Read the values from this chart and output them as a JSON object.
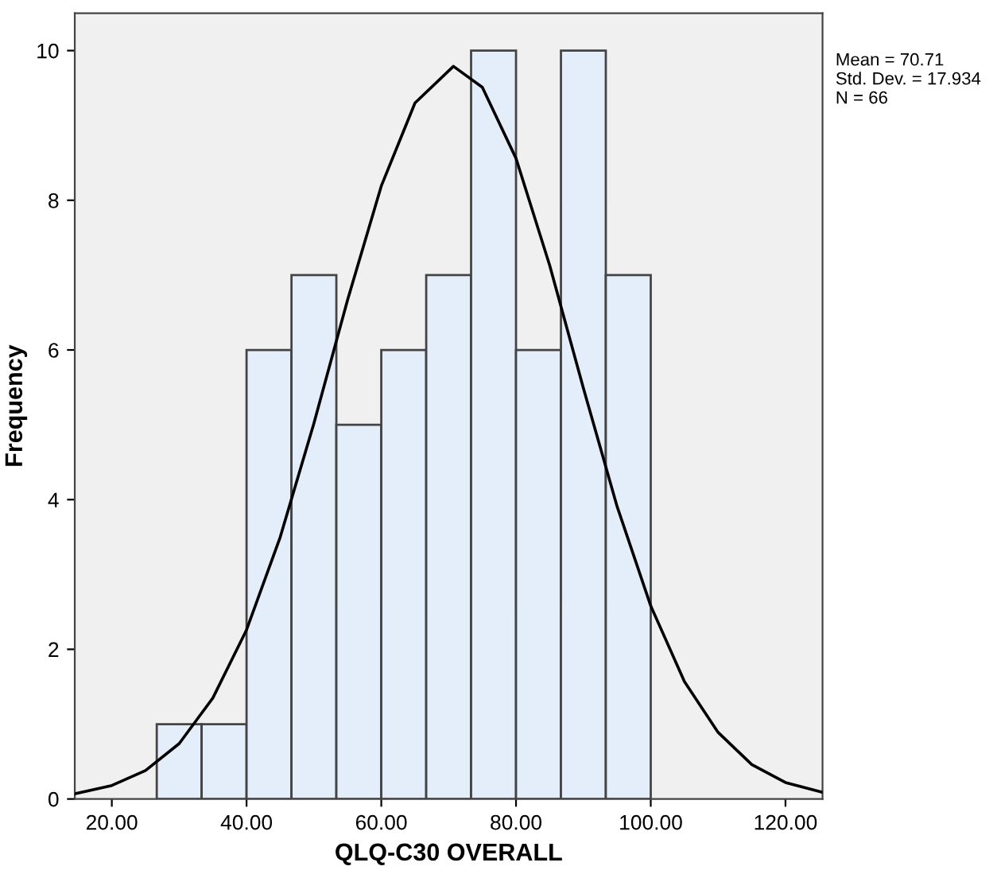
{
  "chart_data": {
    "type": "histogram",
    "xlabel": "QLQ-C30 OVERALL",
    "ylabel": "Frequency",
    "bins": [
      26.67,
      33.33,
      40,
      46.67,
      53.33,
      60,
      66.67,
      73.33,
      80,
      86.67,
      93.33,
      100
    ],
    "values": [
      1,
      1,
      6,
      7,
      5,
      6,
      7,
      10,
      6,
      10,
      7
    ],
    "color": "#e3eefa",
    "series": [
      {
        "type": "line",
        "color": "#000000",
        "x": [
          14.5,
          20,
          25,
          30,
          35,
          40,
          45,
          50,
          55,
          60,
          65,
          70.71,
          75,
          80,
          85,
          90,
          95,
          100,
          105,
          110,
          115,
          120,
          125.5
        ],
        "values": [
          0.07,
          0.18,
          0.38,
          0.74,
          1.35,
          2.26,
          3.5,
          5.02,
          6.67,
          8.19,
          9.3,
          9.79,
          9.51,
          8.56,
          7.13,
          5.49,
          3.91,
          2.58,
          1.57,
          0.89,
          0.46,
          0.22,
          0.09
        ]
      }
    ],
    "xlim": [
      14.5,
      125.5
    ],
    "xticks": [
      {
        "value": 20,
        "label": "20.00"
      },
      {
        "value": 40,
        "label": "40.00"
      },
      {
        "value": 60,
        "label": "60.00"
      },
      {
        "value": 80,
        "label": "80.00"
      },
      {
        "value": 100,
        "label": "100.00"
      },
      {
        "value": 120,
        "label": "120.00"
      }
    ],
    "ylim": [
      0,
      10.5
    ],
    "yticks": [
      0,
      2,
      4,
      6,
      8,
      10
    ],
    "annotations": [
      "Mean = 70.71\nStd. Dev. = 17.934\nN = 66"
    ]
  }
}
